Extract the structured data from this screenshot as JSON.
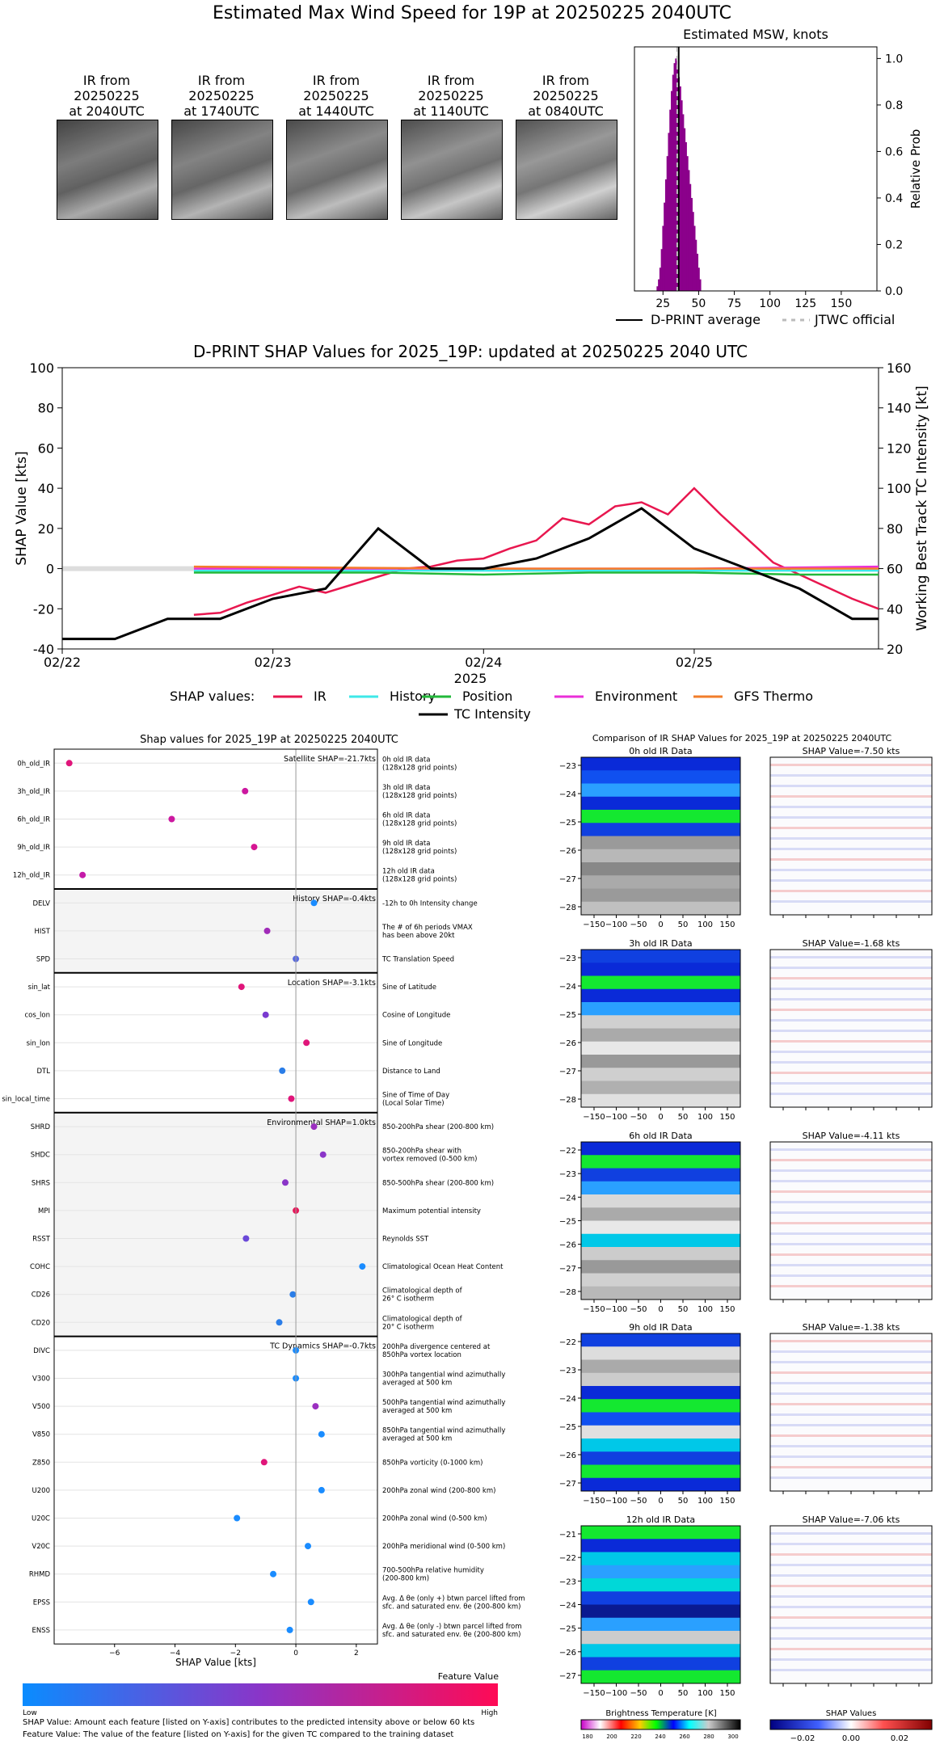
{
  "page": {
    "title": "Estimated Max Wind Speed for 19P at 20250225 2040UTC"
  },
  "ir_images": [
    {
      "caption": [
        "IR from",
        "20250225",
        "at 2040UTC"
      ]
    },
    {
      "caption": [
        "IR from",
        "20250225",
        "at 1740UTC"
      ]
    },
    {
      "caption": [
        "IR from",
        "20250225",
        "at 1440UTC"
      ]
    },
    {
      "caption": [
        "IR from",
        "20250225",
        "at 1140UTC"
      ]
    },
    {
      "caption": [
        "IR from",
        "20250225",
        "at 0840UTC"
      ]
    }
  ],
  "msw_panel": {
    "legend": {
      "dprint": "D-PRINT average",
      "jtwc": "JTWC official"
    }
  },
  "colorbar_feature": {
    "title": "Feature Value",
    "low": "Low",
    "high": "High"
  },
  "footnotes": [
    "SHAP Value: Amount each feature [listed on Y-axis] contributes to the predicted intensity above or below 60 kts",
    "Feature Value: The value of the feature [listed on Y-axis] for the given TC compared to the training dataset"
  ],
  "ir_compare": {
    "title": "Comparison of IR SHAP Values for 2025_19P at 20250225 2040UTC",
    "rows": [
      {
        "ir_title": "0h old IR Data",
        "shap_title": "SHAP Value=-7.50 kts"
      },
      {
        "ir_title": "3h old IR Data",
        "shap_title": "SHAP Value=-1.68 kts"
      },
      {
        "ir_title": "6h old IR Data",
        "shap_title": "SHAP Value=-4.11 kts"
      },
      {
        "ir_title": "9h old IR Data",
        "shap_title": "SHAP Value=-1.38 kts"
      },
      {
        "ir_title": "12h old IR Data",
        "shap_title": "SHAP Value=-7.06 kts"
      }
    ],
    "bt_colorbar_label": "Brightness Temperature [K]",
    "bt_ticks": [
      "180",
      "200",
      "220",
      "240",
      "260",
      "280",
      "300"
    ],
    "shap_colorbar_label": "SHAP Values",
    "shap_ticks": [
      "−0.02",
      "0.00",
      "0.02"
    ]
  },
  "chart_data": [
    {
      "type": "bar",
      "title": "Estimated MSW, knots",
      "xlabel": "",
      "ylabel": "Relative Prob",
      "xlim": [
        5,
        175
      ],
      "ylim": [
        0,
        1.05
      ],
      "xticks": [
        "25",
        "50",
        "75",
        "100",
        "125",
        "150"
      ],
      "yticks": [
        "0.0",
        "0.2",
        "0.4",
        "0.6",
        "0.8",
        "1.0"
      ],
      "bin_width": 1,
      "bins": [
        [
          21,
          0.02
        ],
        [
          22,
          0.05
        ],
        [
          23,
          0.1
        ],
        [
          24,
          0.18
        ],
        [
          25,
          0.28
        ],
        [
          26,
          0.38
        ],
        [
          27,
          0.48
        ],
        [
          28,
          0.58
        ],
        [
          29,
          0.68
        ],
        [
          30,
          0.78
        ],
        [
          31,
          0.86
        ],
        [
          32,
          0.93
        ],
        [
          33,
          0.98
        ],
        [
          34,
          1.0
        ],
        [
          35,
          0.97
        ],
        [
          36,
          0.92
        ],
        [
          37,
          0.88
        ],
        [
          38,
          0.82
        ],
        [
          39,
          0.76
        ],
        [
          40,
          0.7
        ],
        [
          41,
          0.64
        ],
        [
          42,
          0.58
        ],
        [
          43,
          0.52
        ],
        [
          44,
          0.46
        ],
        [
          45,
          0.4
        ],
        [
          46,
          0.34
        ],
        [
          47,
          0.28
        ],
        [
          48,
          0.22
        ],
        [
          49,
          0.16
        ],
        [
          50,
          0.1
        ],
        [
          51,
          0.05
        ]
      ],
      "dprint_average": 36,
      "jtwc_official": 35,
      "legend": [
        "D-PRINT average",
        "JTWC official"
      ]
    },
    {
      "type": "line",
      "title": "D-PRINT SHAP Values for 2025_19P: updated at 20250225 2040 UTC",
      "xlabel": "2025",
      "ylabel": "SHAP Value [kts]",
      "y2label": "Working Best Track TC Intensity [kt]",
      "ylim": [
        -40,
        100
      ],
      "y2lim": [
        20,
        160
      ],
      "xlim": [
        "02/22 00",
        "02/25 21"
      ],
      "xticks": [
        "02/22",
        "02/23",
        "02/24",
        "02/25"
      ],
      "yticks": [
        "-40",
        "-20",
        "0",
        "20",
        "40",
        "60",
        "80",
        "100"
      ],
      "y2ticks": [
        "20",
        "40",
        "60",
        "80",
        "100",
        "120",
        "140",
        "160"
      ],
      "legend_label": "SHAP values:",
      "series": [
        {
          "name": "IR",
          "color": "#e8174f",
          "x": [
            "02/22 15",
            "02/22 18",
            "02/22 21",
            "02/23 00",
            "02/23 03",
            "02/23 06",
            "02/23 09",
            "02/23 12",
            "02/23 15",
            "02/23 18",
            "02/23 21",
            "02/24 00",
            "02/24 03",
            "02/24 06",
            "02/24 09",
            "02/24 12",
            "02/24 15",
            "02/24 18",
            "02/24 21",
            "02/25 00",
            "02/25 03",
            "02/25 06",
            "02/25 09",
            "02/25 12",
            "02/25 15",
            "02/25 18",
            "02/25 21"
          ],
          "y": [
            -23,
            -22,
            -17,
            -13,
            -9,
            -12,
            -8,
            -4,
            0,
            1,
            4,
            5,
            10,
            14,
            25,
            22,
            31,
            33,
            27,
            40,
            27,
            15,
            3,
            -3,
            -9,
            -15,
            -20
          ]
        },
        {
          "name": "History",
          "color": "#3ee8e8",
          "x": [
            "02/22 15",
            "02/25 21"
          ],
          "y": [
            -1,
            -1
          ]
        },
        {
          "name": "Position",
          "color": "#22b83a",
          "x": [
            "02/22 15",
            "02/23 12",
            "02/24 00",
            "02/24 12",
            "02/25 00",
            "02/25 12",
            "02/25 21"
          ],
          "y": [
            -2,
            -2,
            -3,
            -2,
            -2,
            -3,
            -3
          ]
        },
        {
          "name": "Environment",
          "color": "#ea2fd8",
          "x": [
            "02/22 15",
            "02/24 00",
            "02/25 00",
            "02/25 21"
          ],
          "y": [
            0,
            0,
            0,
            1
          ]
        },
        {
          "name": "GFS Thermo",
          "color": "#f27d2a",
          "x": [
            "02/22 15",
            "02/24 00",
            "02/25 21"
          ],
          "y": [
            1,
            0,
            0
          ]
        },
        {
          "name": "TC Intensity",
          "color": "#000000",
          "axis": "y2",
          "x": [
            "02/22 00",
            "02/22 06",
            "02/22 12",
            "02/22 18",
            "02/23 00",
            "02/23 06",
            "02/23 12",
            "02/23 18",
            "02/24 00",
            "02/24 06",
            "02/24 12",
            "02/24 18",
            "02/25 00",
            "02/25 06",
            "02/25 12",
            "02/25 18",
            "02/25 21"
          ],
          "y": [
            25,
            25,
            35,
            35,
            45,
            50,
            80,
            60,
            60,
            65,
            75,
            90,
            70,
            60,
            50,
            35,
            35
          ]
        }
      ]
    },
    {
      "type": "scatter",
      "title": "Shap values for 2025_19P at 20250225 2040UTC",
      "xlabel": "SHAP Value [kts]",
      "xlim": [
        -8.0,
        2.7
      ],
      "xticks": [
        "−6",
        "−4",
        "−2",
        "0",
        "2"
      ],
      "groups": [
        {
          "label": "Satellite SHAP=-21.7kts",
          "features": [
            {
              "name": "0h_old_IR",
              "desc": [
                "0h old IR data",
                "(128x128 grid points)"
              ],
              "x": -7.5,
              "color": "#e0157a"
            },
            {
              "name": "3h_old_IR",
              "desc": [
                "3h old IR data",
                "(128x128 grid points)"
              ],
              "x": -1.68,
              "color": "#cc18a0"
            },
            {
              "name": "6h_old_IR",
              "desc": [
                "6h old IR data",
                "(128x128 grid points)"
              ],
              "x": -4.11,
              "color": "#cc18a0"
            },
            {
              "name": "9h_old_IR",
              "desc": [
                "9h old IR data",
                "(128x128 grid points)"
              ],
              "x": -1.38,
              "color": "#d61592"
            },
            {
              "name": "12h_old_IR",
              "desc": [
                "12h old IR data",
                "(128x128 grid points)"
              ],
              "x": -7.06,
              "color": "#c41aa8"
            }
          ]
        },
        {
          "label": "History SHAP=-0.4kts",
          "features": [
            {
              "name": "DELV",
              "desc": [
                "-12h to 0h Intensity change"
              ],
              "x": 0.6,
              "color": "#1a8cff"
            },
            {
              "name": "HIST",
              "desc": [
                "The # of 6h periods VMAX",
                "has been above 20kt"
              ],
              "x": -0.95,
              "color": "#a02bb8"
            },
            {
              "name": "SPD",
              "desc": [
                "TC Translation Speed"
              ],
              "x": 0.0,
              "color": "#5a6be0"
            }
          ]
        },
        {
          "label": "Location SHAP=-3.1kts",
          "features": [
            {
              "name": "sin_lat",
              "desc": [
                "Sine of Latitude"
              ],
              "x": -1.8,
              "color": "#e0157a"
            },
            {
              "name": "cos_lon",
              "desc": [
                "Cosine of Longitude"
              ],
              "x": -1.0,
              "color": "#7a3ad0"
            },
            {
              "name": "sin_lon",
              "desc": [
                "Sine of Longitude"
              ],
              "x": 0.35,
              "color": "#e0157a"
            },
            {
              "name": "DTL",
              "desc": [
                "Distance to Land"
              ],
              "x": -0.45,
              "color": "#2a7de8"
            },
            {
              "name": "sin_local_time",
              "desc": [
                "Sine of Time of Day",
                "(Local Solar Time)"
              ],
              "x": -0.15,
              "color": "#e0157a"
            }
          ]
        },
        {
          "label": "Environmental SHAP=1.0kts",
          "features": [
            {
              "name": "SHRD",
              "desc": [
                "850-200hPa shear (200-800 km)"
              ],
              "x": 0.6,
              "color": "#9b2fc0"
            },
            {
              "name": "SHDC",
              "desc": [
                "850-200hPa shear with",
                "vortex removed (0-500 km)"
              ],
              "x": 0.9,
              "color": "#8a35c8"
            },
            {
              "name": "SHRS",
              "desc": [
                "850-500hPa shear (200-800 km)"
              ],
              "x": -0.35,
              "color": "#8a35c8"
            },
            {
              "name": "MPI",
              "desc": [
                "Maximum potential intensity"
              ],
              "x": 0.0,
              "color": "#e8175a"
            },
            {
              "name": "RSST",
              "desc": [
                "Reynolds SST"
              ],
              "x": -1.65,
              "color": "#6a48d8"
            },
            {
              "name": "COHC",
              "desc": [
                "Climatological Ocean Heat Content"
              ],
              "x": 2.2,
              "color": "#1a8cff"
            },
            {
              "name": "CD26",
              "desc": [
                "Climatological depth of",
                "26° C isotherm"
              ],
              "x": -0.1,
              "color": "#2a7de8"
            },
            {
              "name": "CD20",
              "desc": [
                "Climatological depth of",
                "20° C isotherm"
              ],
              "x": -0.55,
              "color": "#2a7de8"
            }
          ]
        },
        {
          "label": "TC Dynamics SHAP=-0.7kts",
          "features": [
            {
              "name": "DIVC",
              "desc": [
                "200hPa divergence centered at",
                "850hPa vortex location"
              ],
              "x": 0.0,
              "color": "#1a8cff"
            },
            {
              "name": "V300",
              "desc": [
                "300hPa tangential wind azimuthally",
                "averaged at 500 km"
              ],
              "x": 0.0,
              "color": "#1a8cff"
            },
            {
              "name": "V500",
              "desc": [
                "500hPa tangential wind azimuthally",
                "averaged at 500 km"
              ],
              "x": 0.65,
              "color": "#9b2fc0"
            },
            {
              "name": "V850",
              "desc": [
                "850hPa tangential wind azimuthally",
                "averaged at 500 km"
              ],
              "x": 0.85,
              "color": "#1a8cff"
            },
            {
              "name": "Z850",
              "desc": [
                "850hPa vorticity (0-1000 km)"
              ],
              "x": -1.05,
              "color": "#e0157a"
            },
            {
              "name": "U200",
              "desc": [
                "200hPa zonal wind (200-800 km)"
              ],
              "x": 0.85,
              "color": "#1a8cff"
            },
            {
              "name": "U20C",
              "desc": [
                "200hPa zonal wind (0-500 km)"
              ],
              "x": -1.95,
              "color": "#1a8cff"
            },
            {
              "name": "V20C",
              "desc": [
                "200hPa meridional wind (0-500 km)"
              ],
              "x": 0.4,
              "color": "#1a8cff"
            },
            {
              "name": "RHMD",
              "desc": [
                "700-500hPa relative humidity",
                "(200-800 km)"
              ],
              "x": -0.75,
              "color": "#1a8cff"
            },
            {
              "name": "EPSS",
              "desc": [
                "Avg. Δ θe (only +) btwn parcel lifted from",
                "sfc. and saturated env. θe (200-800 km)"
              ],
              "x": 0.5,
              "color": "#1a8cff"
            },
            {
              "name": "ENSS",
              "desc": [
                "Avg. Δ θe (only -) btwn parcel lifted from",
                "sfc. and saturated env. θe (200-800 km)"
              ],
              "x": -0.2,
              "color": "#1a8cff"
            }
          ]
        }
      ]
    },
    {
      "type": "heatmap",
      "title": "Comparison of IR SHAP Values for 2025_19P at 20250225 2040UTC",
      "xticks": [
        "−150",
        "−100",
        "−50",
        "0",
        "50",
        "100",
        "150"
      ],
      "panels": [
        {
          "ir_title": "0h old IR Data",
          "yticks": [
            "−23",
            "−24",
            "−25",
            "−26",
            "−27",
            "−28"
          ],
          "shap": -7.5
        },
        {
          "ir_title": "3h old IR Data",
          "yticks": [
            "−23",
            "−24",
            "−25",
            "−26",
            "−27",
            "−28"
          ],
          "shap": -1.68
        },
        {
          "ir_title": "6h old IR Data",
          "yticks": [
            "−22",
            "−23",
            "−24",
            "−25",
            "−26",
            "−27",
            "−28"
          ],
          "shap": -4.11
        },
        {
          "ir_title": "9h old IR Data",
          "yticks": [
            "−22",
            "−23",
            "−24",
            "−25",
            "−26",
            "−27"
          ],
          "shap": -1.38
        },
        {
          "ir_title": "12h old IR Data",
          "yticks": [
            "−21",
            "−22",
            "−23",
            "−24",
            "−25",
            "−26",
            "−27"
          ],
          "shap": -7.06
        }
      ]
    }
  ]
}
